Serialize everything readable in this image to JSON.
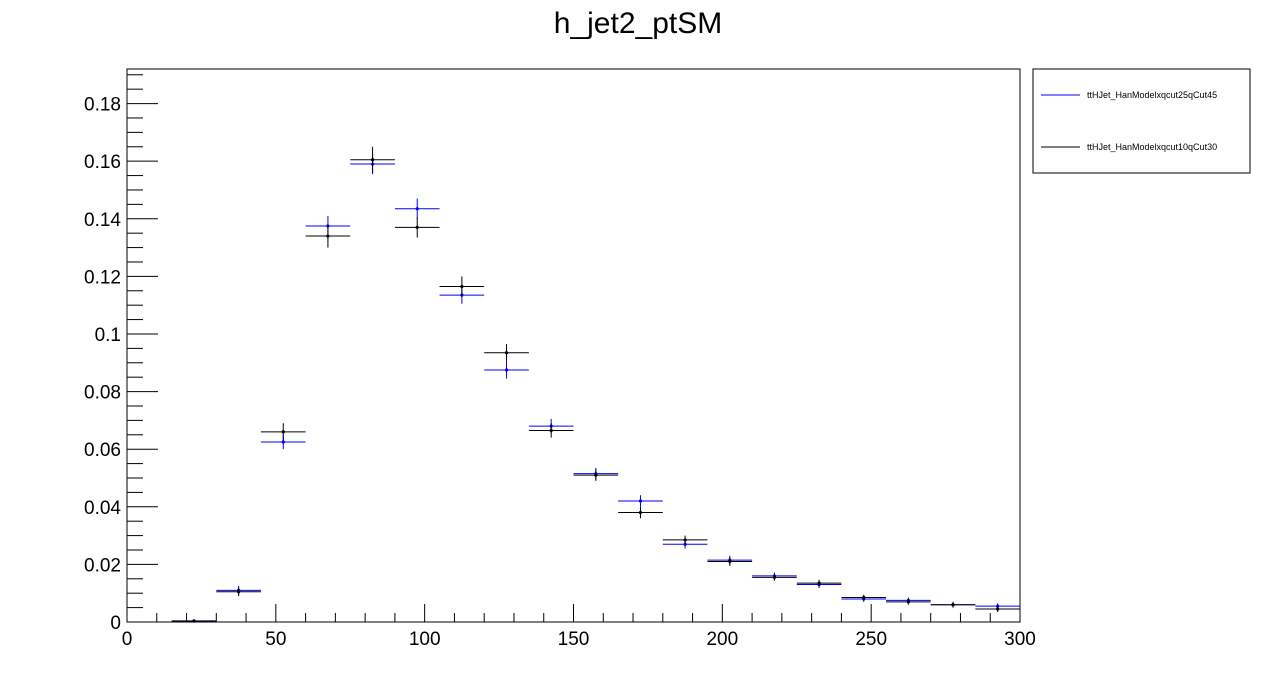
{
  "chart_data": {
    "type": "scatter",
    "title": "h_jet2_ptSM",
    "xlabel": "",
    "ylabel": "",
    "xlim": [
      0,
      300
    ],
    "ylim": [
      0,
      0.192
    ],
    "x_ticks": [
      0,
      50,
      100,
      150,
      200,
      250,
      300
    ],
    "y_ticks": [
      0,
      0.02,
      0.04,
      0.06,
      0.08,
      0.1,
      0.12,
      0.14,
      0.16,
      0.18
    ],
    "x_tick_labels": [
      "0",
      "50",
      "100",
      "150",
      "200",
      "250",
      "300"
    ],
    "y_tick_labels": [
      "0",
      "0.02",
      "0.04",
      "0.06",
      "0.08",
      "0.1",
      "0.12",
      "0.14",
      "0.16",
      "0.18"
    ],
    "grid": false,
    "legend_position": "top-right, outside plot",
    "bin_width": 15,
    "bin_centers": [
      22.5,
      37.5,
      52.5,
      67.5,
      82.5,
      97.5,
      112.5,
      127.5,
      142.5,
      157.5,
      172.5,
      187.5,
      202.5,
      217.5,
      232.5,
      247.5,
      262.5,
      277.5,
      292.5
    ],
    "series": [
      {
        "name": "ttHJet_HanModelxqcut25qCut45",
        "color": "#0000ff",
        "values": [
          0.0003,
          0.011,
          0.0625,
          0.1375,
          0.159,
          0.1435,
          0.1135,
          0.0875,
          0.068,
          0.0515,
          0.042,
          0.027,
          0.0215,
          0.016,
          0.013,
          0.008,
          0.0075,
          0.006,
          0.0055
        ],
        "errors": [
          0.0003,
          0.0015,
          0.0025,
          0.0035,
          0.0035,
          0.0035,
          0.003,
          0.003,
          0.0025,
          0.002,
          0.002,
          0.0015,
          0.0015,
          0.0012,
          0.0012,
          0.001,
          0.001,
          0.001,
          0.001
        ]
      },
      {
        "name": "ttHJet_HanModelxqcut10qCut30",
        "color": "#000000",
        "values": [
          0.0004,
          0.0105,
          0.066,
          0.134,
          0.1605,
          0.137,
          0.1165,
          0.0935,
          0.0665,
          0.051,
          0.038,
          0.0285,
          0.021,
          0.0155,
          0.0135,
          0.0085,
          0.007,
          0.006,
          0.0045
        ],
        "errors": [
          0.0003,
          0.0015,
          0.003,
          0.004,
          0.0045,
          0.0035,
          0.0035,
          0.003,
          0.0025,
          0.002,
          0.002,
          0.0015,
          0.0015,
          0.0012,
          0.0012,
          0.001,
          0.001,
          0.001,
          0.001
        ]
      }
    ]
  }
}
